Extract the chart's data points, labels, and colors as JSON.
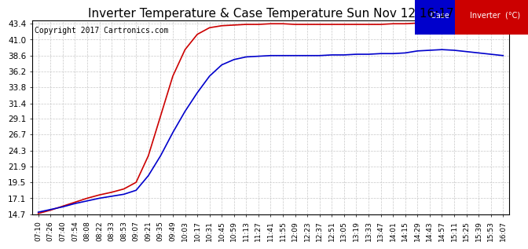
{
  "title": "Inverter Temperature & Case Temperature Sun Nov 12 16:17",
  "copyright": "Copyright 2017 Cartronics.com",
  "background_color": "#ffffff",
  "plot_bg_color": "#ffffff",
  "grid_color": "#c8c8c8",
  "yticks": [
    14.7,
    17.1,
    19.5,
    21.9,
    24.3,
    26.7,
    29.1,
    31.4,
    33.8,
    36.2,
    38.6,
    41.0,
    43.4
  ],
  "ymin": 14.7,
  "ymax": 43.4,
  "xtick_labels": [
    "07:10",
    "07:26",
    "07:40",
    "07:54",
    "08:08",
    "08:22",
    "08:33",
    "08:53",
    "09:07",
    "09:21",
    "09:35",
    "09:49",
    "10:03",
    "10:17",
    "10:31",
    "10:45",
    "10:59",
    "11:13",
    "11:27",
    "11:41",
    "11:55",
    "12:09",
    "12:23",
    "12:37",
    "12:51",
    "13:05",
    "13:19",
    "13:33",
    "13:47",
    "14:01",
    "14:15",
    "14:29",
    "14:43",
    "14:57",
    "15:11",
    "15:25",
    "15:39",
    "15:53",
    "16:07"
  ],
  "legend_case_bg": "#0000cc",
  "legend_inverter_bg": "#cc0000",
  "legend_case_text": "Case  (°C)",
  "legend_inverter_text": "Inverter  (°C)",
  "case_line_color": "#0000cc",
  "inverter_line_color": "#cc0000",
  "title_fontsize": 11,
  "copyright_fontsize": 7,
  "tick_fontsize": 6.5,
  "ytick_fontsize": 7.5,
  "case_data": [
    15.0,
    15.4,
    15.8,
    16.3,
    16.7,
    17.1,
    17.4,
    17.7,
    18.3,
    20.5,
    23.5,
    27.0,
    30.2,
    33.0,
    35.5,
    37.2,
    38.0,
    38.4,
    38.5,
    38.6,
    38.6,
    38.6,
    38.6,
    38.6,
    38.7,
    38.7,
    38.8,
    38.8,
    38.9,
    38.9,
    39.0,
    39.3,
    39.4,
    39.5,
    39.4,
    39.2,
    39.0,
    38.8,
    38.6
  ],
  "inv_data": [
    14.8,
    15.3,
    15.9,
    16.5,
    17.1,
    17.6,
    18.0,
    18.5,
    19.5,
    23.5,
    29.5,
    35.5,
    39.5,
    41.8,
    42.8,
    43.1,
    43.2,
    43.3,
    43.3,
    43.4,
    43.4,
    43.3,
    43.3,
    43.3,
    43.3,
    43.3,
    43.3,
    43.3,
    43.3,
    43.4,
    43.4,
    43.5,
    43.5,
    43.5,
    43.5,
    43.4,
    43.3,
    43.3,
    43.2
  ]
}
